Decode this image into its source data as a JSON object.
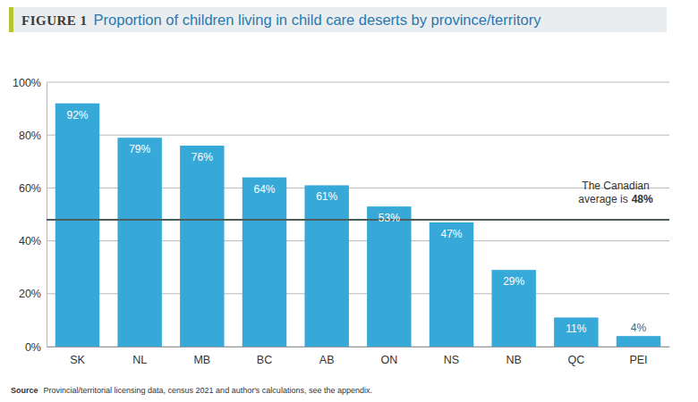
{
  "chart_data": {
    "type": "bar",
    "figure_label": "FIGURE 1",
    "title": "Proportion of children living in child care deserts by province/territory",
    "categories": [
      "SK",
      "NL",
      "MB",
      "BC",
      "AB",
      "ON",
      "NS",
      "NB",
      "QC",
      "PEI"
    ],
    "values": [
      92,
      79,
      76,
      64,
      61,
      53,
      47,
      29,
      11,
      4
    ],
    "value_labels": [
      "92%",
      "79%",
      "76%",
      "64%",
      "61%",
      "53%",
      "47%",
      "29%",
      "11%",
      "4%"
    ],
    "color": "#36a9d8",
    "ylim": [
      0,
      100
    ],
    "yticks": [
      {
        "value": 0,
        "label": "0%"
      },
      {
        "value": 20,
        "label": "20%"
      },
      {
        "value": 40,
        "label": "40%"
      },
      {
        "value": 60,
        "label": "60%"
      },
      {
        "value": 80,
        "label": "80%"
      },
      {
        "value": 100,
        "label": "100%"
      }
    ],
    "grid": true,
    "data_labels": true,
    "reference_line": {
      "value": 48,
      "text": [
        "The Canadian",
        "average is"
      ],
      "value_label": "48%"
    },
    "source_label": "Source",
    "source": "Provincial/territorial licensing data, census 2021 and author's calculations, see the appendix."
  }
}
